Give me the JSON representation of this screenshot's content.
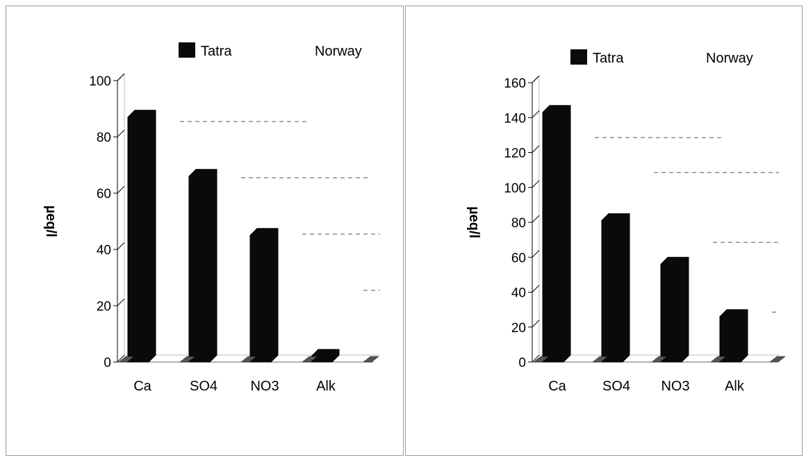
{
  "chart_data": [
    {
      "type": "bar",
      "categories": [
        "Ca",
        "SO4",
        "NO3",
        "Alk"
      ],
      "series": [
        {
          "name": "Tatra",
          "values": [
            87,
            66,
            45,
            2
          ]
        },
        {
          "name": "Norway",
          "values": [
            82,
            62,
            42,
            22
          ]
        }
      ],
      "ylabel": "µeq/l",
      "ylim": [
        0,
        100
      ],
      "yticks": [
        0,
        20,
        40,
        60,
        80,
        100
      ],
      "legend": "top",
      "style": "3d-bar",
      "colors": {
        "Tatra": "#0a0a0a",
        "Norway": "#ffffff"
      }
    },
    {
      "type": "bar",
      "categories": [
        "Ca",
        "SO4",
        "NO3",
        "Alk"
      ],
      "series": [
        {
          "name": "Tatra",
          "values": [
            143,
            81,
            56,
            26
          ]
        },
        {
          "name": "Norway",
          "values": [
            123,
            103,
            63,
            23
          ]
        }
      ],
      "ylabel": "µeq/l",
      "ylim": [
        0,
        160
      ],
      "yticks": [
        0,
        20,
        40,
        60,
        80,
        100,
        120,
        140,
        160
      ],
      "legend": "top",
      "style": "3d-bar",
      "colors": {
        "Tatra": "#0a0a0a",
        "Norway": "#ffffff"
      }
    }
  ]
}
